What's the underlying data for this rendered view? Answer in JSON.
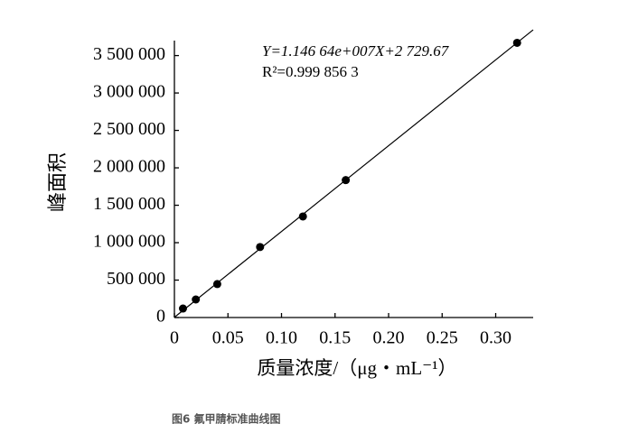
{
  "chart_data": {
    "type": "scatter",
    "x_label": "质量浓度/（μg・mL⁻¹）",
    "y_label": "峰面积",
    "annotations": [
      "Y=1.146 64e+007X+2 729.67",
      "R²=0.999 856 3"
    ],
    "trendline": {
      "slope": 11466400,
      "intercept": 2729.67
    },
    "x": [
      0.008,
      0.02,
      0.04,
      0.08,
      0.12,
      0.16,
      0.32
    ],
    "values": [
      120000,
      241000,
      447000,
      942000,
      1350000,
      1836000,
      3670000
    ],
    "color": "#000000",
    "xlim": [
      0,
      0.335
    ],
    "xticks": [
      0,
      0.05,
      {
        "value": 0.1,
        "label": "0.10"
      },
      0.15,
      {
        "value": 0.2,
        "label": "0.20"
      },
      0.25,
      {
        "value": 0.3,
        "label": "0.30"
      }
    ],
    "ylim": [
      0,
      3700000
    ],
    "yticks": [
      0,
      {
        "value": 500000,
        "label": "500 000"
      },
      {
        "value": 1000000,
        "label": "1 000 000"
      },
      {
        "value": 1500000,
        "label": "1 500 000"
      },
      {
        "value": 2000000,
        "label": "2 000 000"
      },
      {
        "value": 2500000,
        "label": "2 500 000"
      },
      {
        "value": 3000000,
        "label": "3 000 000"
      },
      {
        "value": 3500000,
        "label": "3 500 000"
      }
    ],
    "grid": false,
    "caption": "图6 氟甲腈标准曲线图"
  }
}
